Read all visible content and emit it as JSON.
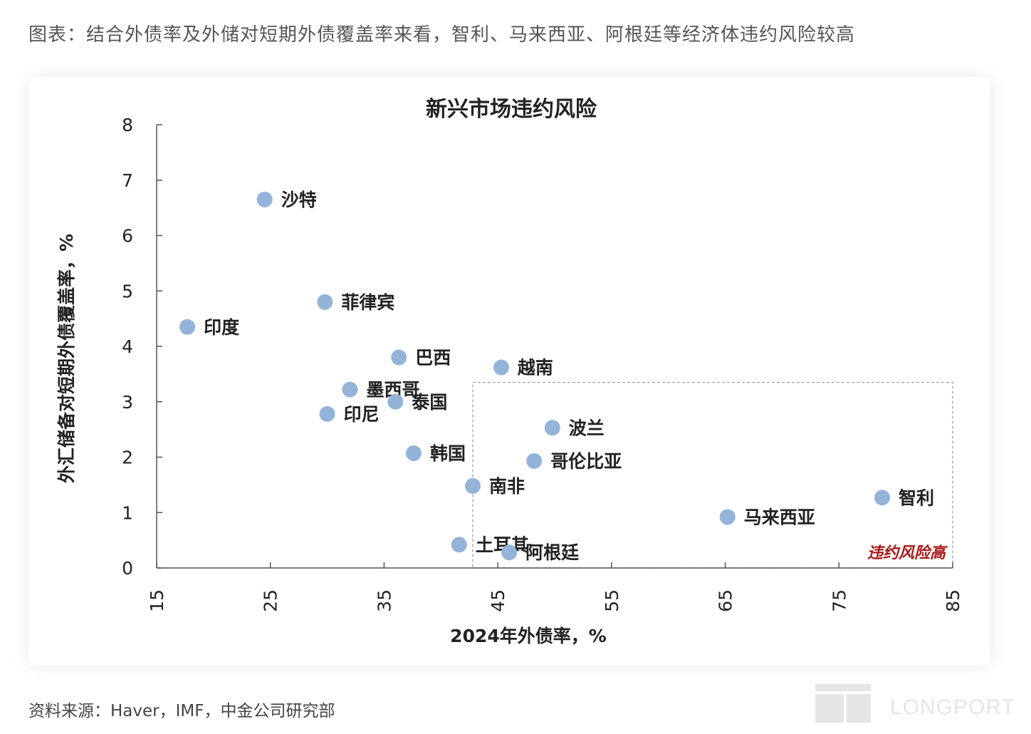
{
  "heading": "图表：结合外债率及外储对短期外债覆盖率来看，智利、马来西亚、阿根廷等经济体违约风险较高",
  "source": "资料来源：Haver，IMF，中金公司研究部",
  "watermark": "LONGPORT",
  "chart_data": {
    "type": "scatter",
    "title": "新兴市场违约风险",
    "xlabel": "2024年外债率，%",
    "ylabel": "外汇储备对短期外债覆盖率，%",
    "xlim": [
      15,
      85
    ],
    "ylim": [
      0,
      8
    ],
    "xticks": [
      15,
      25,
      35,
      45,
      55,
      65,
      75,
      85
    ],
    "yticks": [
      0,
      1,
      2,
      3,
      4,
      5,
      6,
      7,
      8
    ],
    "point_color": "#94b3d9",
    "points": [
      {
        "label": "沙特",
        "x": 24.5,
        "y": 6.65
      },
      {
        "label": "菲律宾",
        "x": 29.8,
        "y": 4.8
      },
      {
        "label": "印度",
        "x": 17.7,
        "y": 4.35
      },
      {
        "label": "巴西",
        "x": 36.3,
        "y": 3.8
      },
      {
        "label": "越南",
        "x": 45.3,
        "y": 3.62
      },
      {
        "label": "墨西哥",
        "x": 32.0,
        "y": 3.22
      },
      {
        "label": "泰国",
        "x": 36.0,
        "y": 3.0
      },
      {
        "label": "印尼",
        "x": 30.0,
        "y": 2.78
      },
      {
        "label": "波兰",
        "x": 49.8,
        "y": 2.53
      },
      {
        "label": "韩国",
        "x": 37.6,
        "y": 2.07
      },
      {
        "label": "哥伦比亚",
        "x": 48.2,
        "y": 1.93
      },
      {
        "label": "南非",
        "x": 42.8,
        "y": 1.48
      },
      {
        "label": "智利",
        "x": 78.8,
        "y": 1.27
      },
      {
        "label": "马来西亚",
        "x": 65.2,
        "y": 0.92
      },
      {
        "label": "土耳其",
        "x": 41.6,
        "y": 0.42
      },
      {
        "label": "阿根廷",
        "x": 46.0,
        "y": 0.28
      }
    ],
    "risk_region": {
      "label": "违约风险高",
      "label_color": "#a81818",
      "x_range": [
        42.8,
        85
      ],
      "y_range": [
        0,
        3.35
      ]
    }
  }
}
